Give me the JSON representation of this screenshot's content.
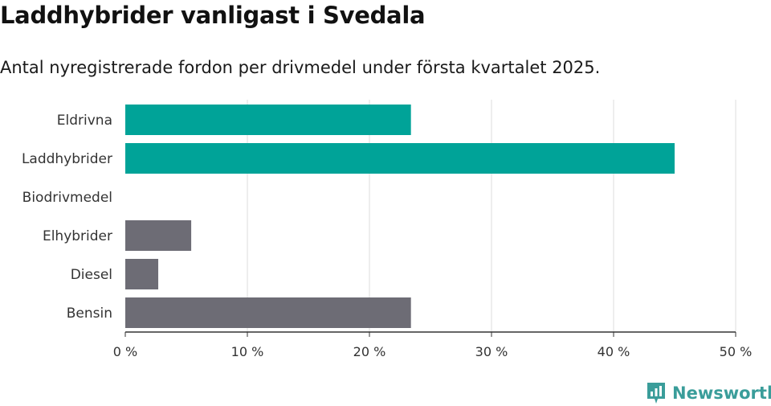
{
  "title": "Laddhybrider vanligast i Svedala",
  "subtitle": "Antal nyregistrerade fordon per drivmedel under första kvartalet 2025.",
  "brand": {
    "name": "Newsworthy",
    "icon": "newsworthy-logo-icon",
    "color": "#3a9d9a"
  },
  "chart_data": {
    "type": "bar",
    "orientation": "horizontal",
    "categories": [
      "Eldrivna",
      "Laddhybrider",
      "Biodrivmedel",
      "Elhybrider",
      "Diesel",
      "Bensin"
    ],
    "values": [
      23.4,
      45.0,
      0,
      5.4,
      2.7,
      23.4
    ],
    "colors": [
      "#00a398",
      "#00a398",
      "#00a398",
      "#6d6c75",
      "#6d6c75",
      "#6d6c75"
    ],
    "xlim": [
      0,
      50
    ],
    "xticks": [
      0,
      10,
      20,
      30,
      40,
      50
    ],
    "xtick_labels": [
      "0 %",
      "10 %",
      "20 %",
      "30 %",
      "40 %",
      "50 %"
    ],
    "grid": true
  }
}
